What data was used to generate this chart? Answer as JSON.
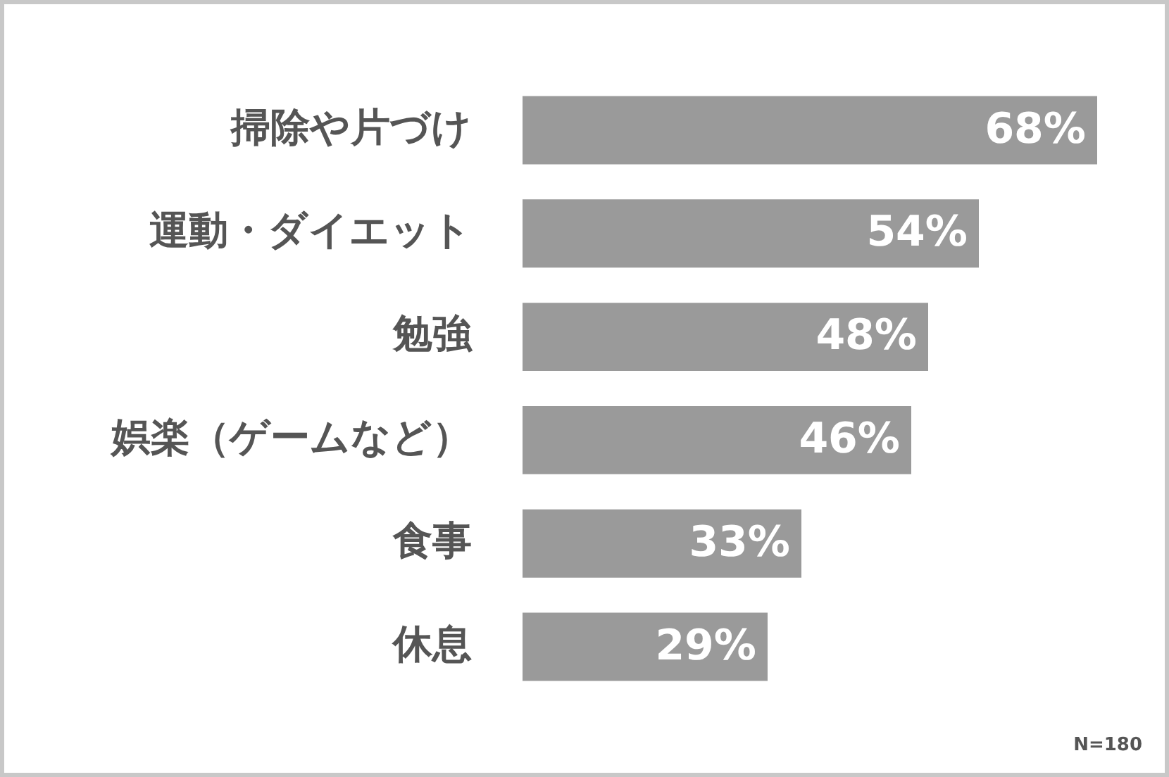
{
  "chart_data": {
    "type": "bar",
    "orientation": "horizontal",
    "categories": [
      "掃除や片づけ",
      "運動・ダイエット",
      "勉強",
      "娯楽（ゲームなど）",
      "食事",
      "休息"
    ],
    "values": [
      68,
      54,
      48,
      46,
      33,
      29
    ],
    "value_labels": [
      "68%",
      "54%",
      "48%",
      "46%",
      "33%",
      "29%"
    ],
    "color": "#9a9a9a",
    "legend": false,
    "tick_labels": "y",
    "annotations": [
      "N=180"
    ]
  }
}
